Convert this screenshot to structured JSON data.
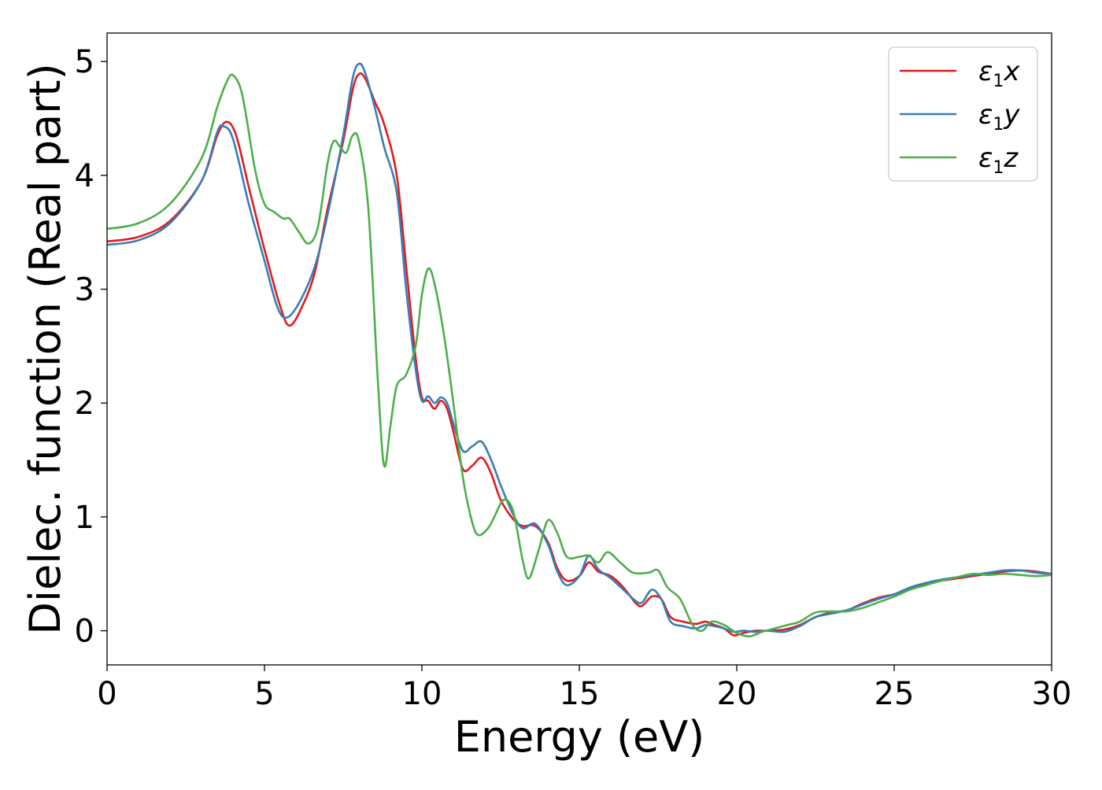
{
  "chart_data": {
    "type": "line",
    "title": "",
    "xlabel": "Energy (eV)",
    "ylabel": "Dielec. function (Real part)",
    "xlim": [
      0,
      30
    ],
    "ylim": [
      -0.3,
      5.25
    ],
    "xticks": [
      0,
      5,
      10,
      15,
      20,
      25,
      30
    ],
    "xtick_labels": [
      "0",
      "5",
      "10",
      "15",
      "20",
      "25",
      "30"
    ],
    "yticks": [
      0,
      1,
      2,
      3,
      4,
      5
    ],
    "ytick_labels": [
      "0",
      "1",
      "2",
      "3",
      "4",
      "5"
    ],
    "grid": false,
    "legend_position": "top-right",
    "series": [
      {
        "name": "ε₁x",
        "legend": {
          "base": "ε",
          "sub": "1",
          "suffix": "x"
        },
        "color": "#e41a1c",
        "points": [
          [
            0,
            3.42
          ],
          [
            1,
            3.46
          ],
          [
            2,
            3.6
          ],
          [
            3,
            3.95
          ],
          [
            3.5,
            4.35
          ],
          [
            3.8,
            4.47
          ],
          [
            4.1,
            4.35
          ],
          [
            4.5,
            3.9
          ],
          [
            5,
            3.35
          ],
          [
            5.5,
            2.85
          ],
          [
            5.8,
            2.68
          ],
          [
            6.2,
            2.85
          ],
          [
            6.6,
            3.15
          ],
          [
            7,
            3.7
          ],
          [
            7.5,
            4.3
          ],
          [
            7.8,
            4.75
          ],
          [
            8,
            4.89
          ],
          [
            8.2,
            4.85
          ],
          [
            8.5,
            4.65
          ],
          [
            8.8,
            4.45
          ],
          [
            9.2,
            4.0
          ],
          [
            9.5,
            3.2
          ],
          [
            9.8,
            2.4
          ],
          [
            10,
            2.05
          ],
          [
            10.2,
            2.02
          ],
          [
            10.4,
            1.95
          ],
          [
            10.6,
            2.02
          ],
          [
            10.8,
            1.95
          ],
          [
            11,
            1.75
          ],
          [
            11.3,
            1.42
          ],
          [
            11.6,
            1.45
          ],
          [
            11.9,
            1.52
          ],
          [
            12.2,
            1.38
          ],
          [
            12.5,
            1.15
          ],
          [
            12.9,
            0.98
          ],
          [
            13.2,
            0.92
          ],
          [
            13.6,
            0.92
          ],
          [
            14,
            0.78
          ],
          [
            14.3,
            0.55
          ],
          [
            14.6,
            0.44
          ],
          [
            15,
            0.48
          ],
          [
            15.3,
            0.6
          ],
          [
            15.6,
            0.52
          ],
          [
            16,
            0.48
          ],
          [
            16.4,
            0.38
          ],
          [
            16.8,
            0.24
          ],
          [
            17,
            0.22
          ],
          [
            17.3,
            0.3
          ],
          [
            17.6,
            0.28
          ],
          [
            17.9,
            0.12
          ],
          [
            18.3,
            0.08
          ],
          [
            18.7,
            0.06
          ],
          [
            19,
            0.08
          ],
          [
            19.3,
            0.05
          ],
          [
            19.6,
            0.02
          ],
          [
            19.9,
            -0.04
          ],
          [
            20.2,
            -0.02
          ],
          [
            20.6,
            0.0
          ],
          [
            21,
            0.0
          ],
          [
            21.5,
            0.01
          ],
          [
            22,
            0.05
          ],
          [
            22.5,
            0.12
          ],
          [
            23,
            0.16
          ],
          [
            23.5,
            0.18
          ],
          [
            24,
            0.24
          ],
          [
            24.5,
            0.29
          ],
          [
            25,
            0.32
          ],
          [
            25.5,
            0.37
          ],
          [
            26,
            0.41
          ],
          [
            26.5,
            0.44
          ],
          [
            27,
            0.46
          ],
          [
            27.5,
            0.48
          ],
          [
            28,
            0.5
          ],
          [
            28.5,
            0.52
          ],
          [
            29,
            0.53
          ],
          [
            29.5,
            0.52
          ],
          [
            30,
            0.5
          ]
        ]
      },
      {
        "name": "ε₁y",
        "legend": {
          "base": "ε",
          "sub": "1",
          "suffix": "y"
        },
        "color": "#377eb8",
        "points": [
          [
            0,
            3.39
          ],
          [
            1,
            3.43
          ],
          [
            2,
            3.58
          ],
          [
            3,
            3.95
          ],
          [
            3.5,
            4.38
          ],
          [
            3.7,
            4.43
          ],
          [
            4.0,
            4.32
          ],
          [
            4.5,
            3.75
          ],
          [
            5,
            3.25
          ],
          [
            5.4,
            2.85
          ],
          [
            5.7,
            2.75
          ],
          [
            6.1,
            2.88
          ],
          [
            6.6,
            3.2
          ],
          [
            7,
            3.65
          ],
          [
            7.5,
            4.35
          ],
          [
            7.8,
            4.85
          ],
          [
            8,
            4.98
          ],
          [
            8.2,
            4.9
          ],
          [
            8.5,
            4.6
          ],
          [
            8.8,
            4.25
          ],
          [
            9.2,
            3.85
          ],
          [
            9.5,
            3.0
          ],
          [
            9.8,
            2.3
          ],
          [
            10,
            2.02
          ],
          [
            10.2,
            2.06
          ],
          [
            10.4,
            2.0
          ],
          [
            10.6,
            2.05
          ],
          [
            10.8,
            2.0
          ],
          [
            11,
            1.82
          ],
          [
            11.3,
            1.58
          ],
          [
            11.6,
            1.62
          ],
          [
            11.9,
            1.66
          ],
          [
            12.2,
            1.5
          ],
          [
            12.5,
            1.28
          ],
          [
            12.9,
            1.02
          ],
          [
            13.2,
            0.9
          ],
          [
            13.6,
            0.94
          ],
          [
            14,
            0.76
          ],
          [
            14.3,
            0.52
          ],
          [
            14.6,
            0.4
          ],
          [
            15,
            0.48
          ],
          [
            15.3,
            0.66
          ],
          [
            15.6,
            0.54
          ],
          [
            16,
            0.46
          ],
          [
            16.4,
            0.36
          ],
          [
            16.8,
            0.26
          ],
          [
            17,
            0.25
          ],
          [
            17.3,
            0.36
          ],
          [
            17.6,
            0.28
          ],
          [
            17.9,
            0.08
          ],
          [
            18.3,
            0.04
          ],
          [
            18.7,
            0.02
          ],
          [
            19,
            0.05
          ],
          [
            19.3,
            0.04
          ],
          [
            19.6,
            0.02
          ],
          [
            19.9,
            -0.01
          ],
          [
            20.2,
            0.0
          ],
          [
            20.6,
            -0.01
          ],
          [
            21,
            0.0
          ],
          [
            21.5,
            -0.01
          ],
          [
            22,
            0.04
          ],
          [
            22.5,
            0.12
          ],
          [
            23,
            0.15
          ],
          [
            23.5,
            0.18
          ],
          [
            24,
            0.23
          ],
          [
            24.5,
            0.28
          ],
          [
            25,
            0.32
          ],
          [
            25.5,
            0.38
          ],
          [
            26,
            0.42
          ],
          [
            26.5,
            0.45
          ],
          [
            27,
            0.47
          ],
          [
            27.5,
            0.49
          ],
          [
            28,
            0.51
          ],
          [
            28.5,
            0.53
          ],
          [
            29,
            0.53
          ],
          [
            29.5,
            0.51
          ],
          [
            30,
            0.5
          ]
        ]
      },
      {
        "name": "ε₁z",
        "legend": {
          "base": "ε",
          "sub": "1",
          "suffix": "z"
        },
        "color": "#4daf4a",
        "points": [
          [
            0,
            3.53
          ],
          [
            1,
            3.58
          ],
          [
            2,
            3.75
          ],
          [
            3,
            4.15
          ],
          [
            3.5,
            4.6
          ],
          [
            3.8,
            4.82
          ],
          [
            4.0,
            4.88
          ],
          [
            4.3,
            4.7
          ],
          [
            4.7,
            4.05
          ],
          [
            5,
            3.75
          ],
          [
            5.3,
            3.68
          ],
          [
            5.6,
            3.62
          ],
          [
            5.8,
            3.62
          ],
          [
            6.1,
            3.5
          ],
          [
            6.4,
            3.4
          ],
          [
            6.7,
            3.55
          ],
          [
            7,
            4.1
          ],
          [
            7.2,
            4.3
          ],
          [
            7.4,
            4.25
          ],
          [
            7.6,
            4.2
          ],
          [
            7.8,
            4.35
          ],
          [
            8,
            4.3
          ],
          [
            8.3,
            3.7
          ],
          [
            8.6,
            2.2
          ],
          [
            8.8,
            1.45
          ],
          [
            9,
            1.8
          ],
          [
            9.2,
            2.15
          ],
          [
            9.5,
            2.25
          ],
          [
            9.8,
            2.5
          ],
          [
            10,
            2.95
          ],
          [
            10.2,
            3.18
          ],
          [
            10.4,
            3.05
          ],
          [
            10.7,
            2.6
          ],
          [
            11,
            2.0
          ],
          [
            11.3,
            1.35
          ],
          [
            11.6,
            0.95
          ],
          [
            11.8,
            0.84
          ],
          [
            12.1,
            0.9
          ],
          [
            12.3,
            1.0
          ],
          [
            12.6,
            1.15
          ],
          [
            12.9,
            1.05
          ],
          [
            13.2,
            0.62
          ],
          [
            13.4,
            0.46
          ],
          [
            13.7,
            0.7
          ],
          [
            14,
            0.97
          ],
          [
            14.3,
            0.86
          ],
          [
            14.6,
            0.65
          ],
          [
            15,
            0.65
          ],
          [
            15.3,
            0.66
          ],
          [
            15.6,
            0.6
          ],
          [
            15.9,
            0.69
          ],
          [
            16.3,
            0.6
          ],
          [
            16.7,
            0.51
          ],
          [
            17.2,
            0.51
          ],
          [
            17.5,
            0.53
          ],
          [
            17.8,
            0.38
          ],
          [
            18.2,
            0.28
          ],
          [
            18.6,
            0.05
          ],
          [
            18.9,
            0.0
          ],
          [
            19.2,
            0.08
          ],
          [
            19.6,
            0.05
          ],
          [
            20,
            -0.02
          ],
          [
            20.4,
            -0.05
          ],
          [
            20.8,
            -0.01
          ],
          [
            21.2,
            0.02
          ],
          [
            21.6,
            0.05
          ],
          [
            22,
            0.08
          ],
          [
            22.5,
            0.16
          ],
          [
            23,
            0.17
          ],
          [
            23.5,
            0.17
          ],
          [
            24,
            0.2
          ],
          [
            24.5,
            0.25
          ],
          [
            25,
            0.3
          ],
          [
            25.5,
            0.36
          ],
          [
            26,
            0.4
          ],
          [
            26.5,
            0.44
          ],
          [
            27,
            0.47
          ],
          [
            27.5,
            0.5
          ],
          [
            28,
            0.49
          ],
          [
            28.5,
            0.5
          ],
          [
            29,
            0.49
          ],
          [
            29.5,
            0.48
          ],
          [
            30,
            0.49
          ]
        ]
      }
    ]
  }
}
